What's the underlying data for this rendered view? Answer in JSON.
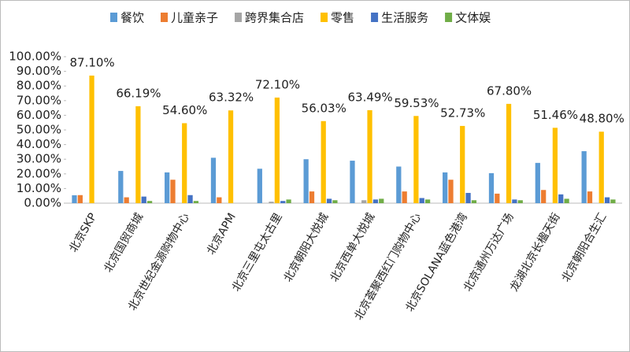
{
  "chart_data": {
    "type": "bar",
    "categories": [
      "北京SKP",
      "北京国贸商城",
      "北京世纪金源购物中心",
      "北京APM",
      "北京三里屯太古里",
      "北京朝阳大悦城",
      "北京西单大悦城",
      "北京荟聚西红门购物中心",
      "北京SOLANA蓝色港湾",
      "北京通州万达广场",
      "龙湖北京长楹天街",
      "北京朝阳合生汇"
    ],
    "series": [
      {
        "name": "餐饮",
        "color": "#5b9bd5",
        "values": [
          5.4,
          22,
          21,
          31,
          23.5,
          30,
          29,
          25,
          21,
          20.5,
          27.5,
          35.5
        ]
      },
      {
        "name": "儿童亲子",
        "color": "#ed7d31",
        "values": [
          5.5,
          4,
          16,
          4,
          0,
          8,
          0,
          8,
          16,
          6.5,
          9,
          8
        ]
      },
      {
        "name": "跨界集合店",
        "color": "#a5a5a5",
        "values": [
          0,
          0,
          0,
          0,
          1,
          0,
          2,
          0,
          0,
          0,
          0,
          0
        ]
      },
      {
        "name": "零售",
        "color": "#ffc000",
        "values": [
          87.1,
          66.19,
          54.6,
          63.32,
          72.1,
          56.03,
          63.49,
          59.53,
          52.73,
          67.8,
          51.46,
          48.8
        ],
        "value_labels": [
          "87.10%",
          "66.19%",
          "54.60%",
          "63.32%",
          "72.10%",
          "56.03%",
          "63.49%",
          "59.53%",
          "52.73%",
          "67.80%",
          "51.46%",
          "48.80%"
        ]
      },
      {
        "name": "生活服务",
        "color": "#4472c4",
        "values": [
          0,
          4.5,
          5.5,
          0,
          1.5,
          3,
          2.5,
          3.5,
          7,
          2.5,
          6,
          4
        ]
      },
      {
        "name": "文体娱",
        "color": "#70ad47",
        "values": [
          0,
          1.5,
          1.5,
          0,
          2.5,
          2,
          3,
          2.5,
          2,
          2,
          3,
          2.5
        ]
      }
    ],
    "ylim": [
      0,
      100
    ],
    "yticks": [
      {
        "value": 0,
        "label": "0.00%"
      },
      {
        "value": 10,
        "label": "10.00%"
      },
      {
        "value": 20,
        "label": "20.00%"
      },
      {
        "value": 30,
        "label": "30.00%"
      },
      {
        "value": 40,
        "label": "40.00%"
      },
      {
        "value": 50,
        "label": "50.00%"
      },
      {
        "value": 60,
        "label": "60.00%"
      },
      {
        "value": 70,
        "label": "70.00%"
      },
      {
        "value": 80,
        "label": "80.00%"
      },
      {
        "value": 90,
        "label": "90.00%"
      },
      {
        "value": 100,
        "label": "100.00%"
      }
    ],
    "grid": false
  }
}
